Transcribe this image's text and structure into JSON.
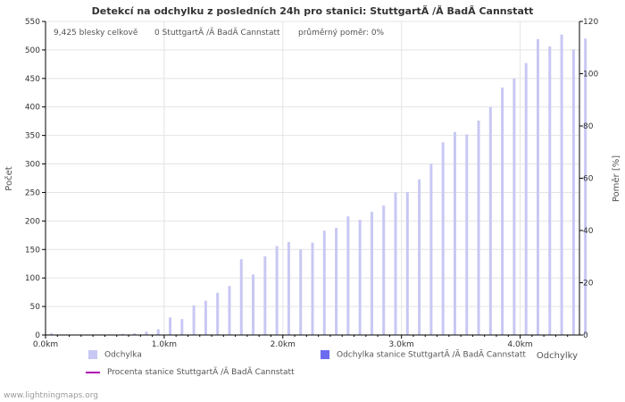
{
  "chart_data": {
    "type": "bar",
    "title": "Detekcí na odchylku z posledních 24h pro stanici: StuttgartÃ /Ã BadÃ Cannstatt",
    "info": {
      "total": "9,425 blesky celkově",
      "station": "0 StuttgartÃ /Ã BadÃ Cannstatt",
      "ratio": "průměrný poměr: 0%"
    },
    "ylabel": "Počet",
    "ylabel_right": "Poměr [%]",
    "xlabel": "Odchylky",
    "ylim": [
      0,
      550
    ],
    "ylim_right": [
      0,
      120
    ],
    "yticks": [
      0,
      50,
      100,
      150,
      200,
      250,
      300,
      350,
      400,
      450,
      500,
      550
    ],
    "yticks_right": [
      0,
      20,
      40,
      60,
      80,
      100,
      120
    ],
    "xlim": [
      0,
      4.5
    ],
    "xticks": [
      {
        "value": 0,
        "label": "0.0km"
      },
      {
        "value": 1,
        "label": "1.0km"
      },
      {
        "value": 2,
        "label": "2.0km"
      },
      {
        "value": 3,
        "label": "3.0km"
      },
      {
        "value": 4,
        "label": "4.0km"
      }
    ],
    "bin_width": 0.1,
    "series": [
      {
        "name": "Odchylka",
        "color": "#c8c8f4",
        "values": [
          3,
          1,
          0,
          1,
          1,
          1,
          2,
          3,
          6,
          10,
          31,
          28,
          52,
          60,
          74,
          86,
          133,
          106,
          138,
          156,
          163,
          150,
          162,
          183,
          188,
          208,
          202,
          216,
          227,
          250,
          251,
          273,
          300,
          338,
          356,
          352,
          376,
          400,
          434,
          450,
          477,
          519,
          506,
          527,
          501,
          520
        ]
      },
      {
        "name": "Odchylka stanice StuttgartÃ /Ã BadÃ Cannstatt",
        "color": "#6b6bf0",
        "values": [
          0,
          0,
          0,
          0,
          0,
          0,
          0,
          0,
          0,
          0,
          0,
          0,
          0,
          0,
          0,
          0,
          0,
          0,
          0,
          0,
          0,
          0,
          0,
          0,
          0,
          0,
          0,
          0,
          0,
          0,
          0,
          0,
          0,
          0,
          0,
          0,
          0,
          0,
          0,
          0,
          0,
          0,
          0,
          0,
          0,
          0
        ]
      },
      {
        "name": "Procenta stanice StuttgartÃ /Ã BadÃ Cannstatt",
        "color": "#b000b0",
        "type": "line",
        "values": []
      }
    ]
  },
  "footer": "www.lightningmaps.org",
  "colors": {
    "bar": "#c8c8f4",
    "station_bar": "#6b6bf0",
    "line": "#b000b0",
    "grid": "#e4e4e4",
    "axis": "#000000",
    "text": "#555555"
  }
}
